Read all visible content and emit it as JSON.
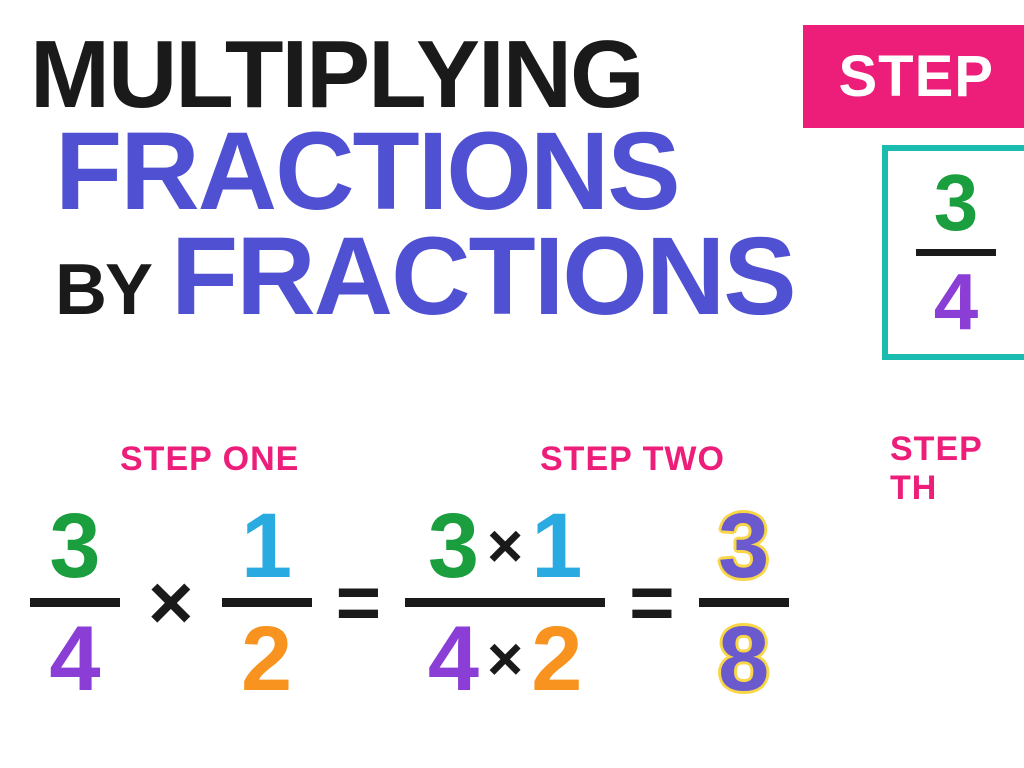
{
  "colors": {
    "black": "#1a1a1a",
    "purple_blue": "#5051d2",
    "pink": "#ed1e79",
    "white": "#ffffff",
    "teal": "#1abcb0",
    "green": "#1a9e3e",
    "purple": "#8a3ed6",
    "blue": "#29abe2",
    "orange": "#f7931e",
    "yellow": "#f9d648",
    "result_purple": "#6a5acd"
  },
  "title": {
    "line1": "MULTIPLYING",
    "line2": "FRACTIONS",
    "line3a": "BY",
    "line3b": "FRACTIONS"
  },
  "badge": "STEP",
  "result": {
    "num": "3",
    "den": "4"
  },
  "step_labels": {
    "one": "STEP ONE",
    "two": "STEP TWO",
    "three": "STEP TH"
  },
  "equation": {
    "f1": {
      "num": "3",
      "den": "4"
    },
    "f2": {
      "num": "1",
      "den": "2"
    },
    "mid": {
      "n1": "3",
      "n2": "1",
      "d1": "4",
      "d2": "2"
    },
    "f3": {
      "num": "3",
      "den": "8"
    }
  }
}
